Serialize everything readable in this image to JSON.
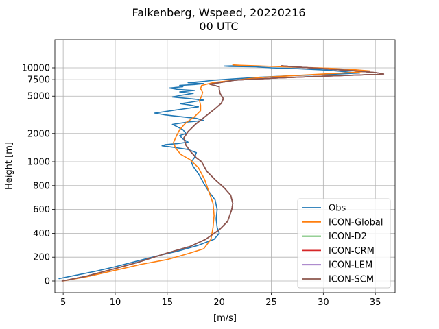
{
  "chart_data": {
    "type": "line",
    "title_line1": "Falkenberg, Wspeed, 20220216",
    "title_line2": "00 UTC",
    "xlabel": "[m/s]",
    "ylabel": "Height [m]",
    "xlim": [
      4.2,
      36.9
    ],
    "x_ticks": [
      5,
      10,
      15,
      20,
      25,
      30,
      35
    ],
    "y_scale": "piecewise: linear 0-1000 m, logarithmic 1000-10000 m",
    "y_ticks": [
      0,
      200,
      400,
      600,
      800,
      1000,
      2000,
      5000,
      7500,
      10000
    ],
    "grid": true,
    "legend_position": "lower right",
    "series": [
      {
        "name": "Obs",
        "color": "#1f77b4",
        "points": [
          [
            4.6,
            20
          ],
          [
            6,
            45
          ],
          [
            8,
            80
          ],
          [
            10,
            120
          ],
          [
            12,
            165
          ],
          [
            14,
            210
          ],
          [
            16,
            250
          ],
          [
            18,
            300
          ],
          [
            19.5,
            350
          ],
          [
            20,
            400
          ],
          [
            19.8,
            450
          ],
          [
            19.7,
            520
          ],
          [
            19.8,
            600
          ],
          [
            19.6,
            680
          ],
          [
            19,
            750
          ],
          [
            18.5,
            820
          ],
          [
            18,
            900
          ],
          [
            17.5,
            960
          ],
          [
            17.3,
            1000
          ],
          [
            17.6,
            1100
          ],
          [
            17.8,
            1250
          ],
          [
            17,
            1350
          ],
          [
            15.5,
            1430
          ],
          [
            14.5,
            1480
          ],
          [
            14.8,
            1520
          ],
          [
            16,
            1560
          ],
          [
            17,
            1620
          ],
          [
            16.5,
            1750
          ],
          [
            16.2,
            1900
          ],
          [
            16.8,
            2000
          ],
          [
            16.5,
            2200
          ],
          [
            15.5,
            2500
          ],
          [
            17,
            2650
          ],
          [
            18.5,
            2750
          ],
          [
            17.8,
            2900
          ],
          [
            16.5,
            3000
          ],
          [
            14.8,
            3150
          ],
          [
            13.8,
            3300
          ],
          [
            15,
            3450
          ],
          [
            16.5,
            3650
          ],
          [
            18,
            3850
          ],
          [
            17.3,
            4000
          ],
          [
            16.3,
            4150
          ],
          [
            17.5,
            4350
          ],
          [
            18.5,
            4550
          ],
          [
            16.8,
            4750
          ],
          [
            15.5,
            4900
          ],
          [
            16.5,
            5150
          ],
          [
            17.5,
            5350
          ],
          [
            16.2,
            5550
          ],
          [
            17.6,
            5750
          ],
          [
            16,
            5900
          ],
          [
            15.2,
            6100
          ],
          [
            16.5,
            6300
          ],
          [
            16.2,
            6500
          ],
          [
            17.6,
            6650
          ],
          [
            18.5,
            6800
          ],
          [
            17,
            6950
          ],
          [
            18.6,
            7200
          ],
          [
            19.5,
            7400
          ],
          [
            21.5,
            7650
          ],
          [
            24,
            7950
          ],
          [
            27,
            8250
          ],
          [
            31,
            8550
          ],
          [
            33.5,
            8800
          ],
          [
            32,
            9100
          ],
          [
            30.5,
            9450
          ],
          [
            27.5,
            9800
          ],
          [
            25,
            10000
          ],
          [
            23.5,
            10250
          ],
          [
            21,
            10350
          ],
          [
            20.5,
            10450
          ],
          [
            22,
            10550
          ]
        ]
      },
      {
        "name": "ICON-Global",
        "color": "#ff7f0e",
        "points": [
          [
            5,
            0
          ],
          [
            7.5,
            40
          ],
          [
            10,
            90
          ],
          [
            12.5,
            140
          ],
          [
            15,
            180
          ],
          [
            17,
            230
          ],
          [
            18.5,
            270
          ],
          [
            19.2,
            350
          ],
          [
            19.4,
            450
          ],
          [
            19.5,
            550
          ],
          [
            19.4,
            650
          ],
          [
            19,
            750
          ],
          [
            18.6,
            850
          ],
          [
            18,
            950
          ],
          [
            17.2,
            1050
          ],
          [
            16.3,
            1200
          ],
          [
            15.8,
            1400
          ],
          [
            15.6,
            1600
          ],
          [
            15.9,
            1900
          ],
          [
            16.2,
            2200
          ],
          [
            16.8,
            2600
          ],
          [
            17.6,
            3000
          ],
          [
            18.2,
            3500
          ],
          [
            18.2,
            4000
          ],
          [
            18.1,
            4500
          ],
          [
            18.3,
            5000
          ],
          [
            18.4,
            5500
          ],
          [
            18.2,
            6000
          ],
          [
            18.3,
            6500
          ],
          [
            19.5,
            7000
          ],
          [
            21.5,
            7400
          ],
          [
            23,
            7700
          ],
          [
            24.5,
            7950
          ],
          [
            27.5,
            8300
          ],
          [
            30.5,
            8650
          ],
          [
            33,
            8950
          ],
          [
            34.5,
            9250
          ],
          [
            33,
            9550
          ],
          [
            30.5,
            9900
          ],
          [
            27,
            10200
          ],
          [
            23.5,
            10500
          ],
          [
            22,
            10650
          ],
          [
            21.3,
            10750
          ]
        ]
      },
      {
        "name": "ICON-D2",
        "color": "#2ca02c",
        "points": [
          [
            4.9,
            0
          ],
          [
            7.2,
            40
          ],
          [
            9.8,
            100
          ],
          [
            12.3,
            160
          ],
          [
            14.8,
            230
          ],
          [
            17.2,
            290
          ],
          [
            18.7,
            350
          ],
          [
            20,
            430
          ],
          [
            20.8,
            500
          ],
          [
            21.2,
            600
          ],
          [
            21.3,
            650
          ],
          [
            21.1,
            720
          ],
          [
            20.5,
            780
          ],
          [
            19.6,
            850
          ],
          [
            18.8,
            920
          ],
          [
            18.3,
            1000
          ],
          [
            17.8,
            1100
          ],
          [
            17.2,
            1300
          ],
          [
            16.8,
            1500
          ],
          [
            16.6,
            1800
          ],
          [
            17,
            2100
          ],
          [
            17.7,
            2500
          ],
          [
            18.6,
            3000
          ],
          [
            19.5,
            3600
          ],
          [
            20.2,
            4200
          ],
          [
            20.4,
            4700
          ],
          [
            20.1,
            5300
          ],
          [
            20,
            5800
          ],
          [
            20,
            6300
          ],
          [
            19.1,
            6700
          ],
          [
            21.5,
            7400
          ],
          [
            25.5,
            7800
          ],
          [
            30,
            8150
          ],
          [
            33.5,
            8400
          ],
          [
            35.8,
            8600
          ],
          [
            35,
            8900
          ],
          [
            33,
            9300
          ],
          [
            30,
            9800
          ],
          [
            27.5,
            10200
          ],
          [
            26,
            10500
          ]
        ]
      },
      {
        "name": "ICON-CRM",
        "color": "#d62728",
        "points": [
          [
            4.9,
            0
          ],
          [
            7.2,
            40
          ],
          [
            9.8,
            100
          ],
          [
            12.3,
            160
          ],
          [
            14.8,
            230
          ],
          [
            17.2,
            290
          ],
          [
            18.7,
            350
          ],
          [
            20,
            430
          ],
          [
            20.8,
            500
          ],
          [
            21.2,
            600
          ],
          [
            21.3,
            650
          ],
          [
            21.1,
            720
          ],
          [
            20.5,
            780
          ],
          [
            19.6,
            850
          ],
          [
            18.8,
            920
          ],
          [
            18.3,
            1000
          ],
          [
            17.8,
            1100
          ],
          [
            17.2,
            1300
          ],
          [
            16.8,
            1500
          ],
          [
            16.6,
            1800
          ],
          [
            17,
            2100
          ],
          [
            17.7,
            2500
          ],
          [
            18.6,
            3000
          ],
          [
            19.5,
            3600
          ],
          [
            20.2,
            4200
          ],
          [
            20.4,
            4700
          ],
          [
            20.1,
            5300
          ],
          [
            20,
            5800
          ],
          [
            20,
            6300
          ],
          [
            19.1,
            6700
          ],
          [
            21.5,
            7400
          ],
          [
            25.5,
            7800
          ],
          [
            30,
            8150
          ],
          [
            33.5,
            8400
          ],
          [
            35.8,
            8600
          ],
          [
            35,
            8900
          ],
          [
            33,
            9300
          ],
          [
            30,
            9800
          ],
          [
            27.5,
            10200
          ],
          [
            26,
            10500
          ]
        ]
      },
      {
        "name": "ICON-LEM",
        "color": "#9467bd",
        "points": [
          [
            4.9,
            0
          ],
          [
            7.2,
            40
          ],
          [
            9.8,
            100
          ],
          [
            12.3,
            160
          ],
          [
            14.8,
            230
          ],
          [
            17.2,
            290
          ],
          [
            18.7,
            350
          ],
          [
            20,
            430
          ],
          [
            20.8,
            500
          ],
          [
            21.2,
            600
          ],
          [
            21.3,
            650
          ],
          [
            21.1,
            720
          ],
          [
            20.5,
            780
          ],
          [
            19.6,
            850
          ],
          [
            18.8,
            920
          ],
          [
            18.3,
            1000
          ],
          [
            17.8,
            1100
          ],
          [
            17.2,
            1300
          ],
          [
            16.8,
            1500
          ],
          [
            16.6,
            1800
          ],
          [
            17,
            2100
          ],
          [
            17.7,
            2500
          ],
          [
            18.6,
            3000
          ],
          [
            19.5,
            3600
          ],
          [
            20.2,
            4200
          ],
          [
            20.4,
            4700
          ],
          [
            20.1,
            5300
          ],
          [
            20,
            5800
          ],
          [
            20,
            6300
          ],
          [
            19.1,
            6700
          ],
          [
            21.5,
            7400
          ],
          [
            25.5,
            7800
          ],
          [
            30,
            8150
          ],
          [
            33.5,
            8400
          ],
          [
            35.8,
            8600
          ],
          [
            35,
            8900
          ],
          [
            33,
            9300
          ],
          [
            30,
            9800
          ],
          [
            27.5,
            10200
          ],
          [
            26,
            10500
          ]
        ]
      },
      {
        "name": "ICON-SCM",
        "color": "#8c564b",
        "points": [
          [
            4.9,
            0
          ],
          [
            7.2,
            40
          ],
          [
            9.8,
            100
          ],
          [
            12.3,
            160
          ],
          [
            14.8,
            230
          ],
          [
            17.2,
            290
          ],
          [
            18.7,
            350
          ],
          [
            20,
            430
          ],
          [
            20.8,
            500
          ],
          [
            21.2,
            600
          ],
          [
            21.3,
            650
          ],
          [
            21.1,
            720
          ],
          [
            20.5,
            780
          ],
          [
            19.6,
            850
          ],
          [
            18.8,
            920
          ],
          [
            18.3,
            1000
          ],
          [
            17.8,
            1100
          ],
          [
            17.2,
            1300
          ],
          [
            16.8,
            1500
          ],
          [
            16.6,
            1800
          ],
          [
            17,
            2100
          ],
          [
            17.7,
            2500
          ],
          [
            18.6,
            3000
          ],
          [
            19.5,
            3600
          ],
          [
            20.2,
            4200
          ],
          [
            20.4,
            4700
          ],
          [
            20.1,
            5300
          ],
          [
            20,
            5800
          ],
          [
            20,
            6300
          ],
          [
            19.1,
            6700
          ],
          [
            21.5,
            7400
          ],
          [
            25.5,
            7800
          ],
          [
            30,
            8150
          ],
          [
            33.5,
            8400
          ],
          [
            35.8,
            8600
          ],
          [
            35,
            8900
          ],
          [
            33,
            9300
          ],
          [
            30,
            9800
          ],
          [
            27.5,
            10200
          ],
          [
            26,
            10500
          ]
        ]
      }
    ]
  }
}
